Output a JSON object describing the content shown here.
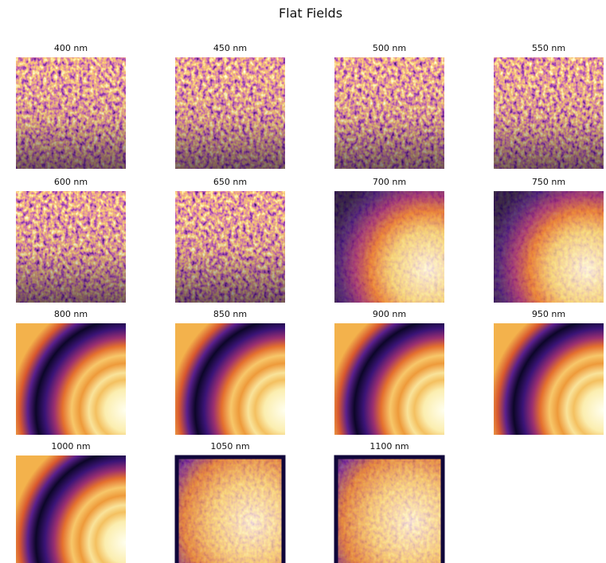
{
  "title": "Flat Fields",
  "panels": [
    {
      "label": "400 nm"
    },
    {
      "label": "450 nm"
    },
    {
      "label": "500 nm"
    },
    {
      "label": "550 nm"
    },
    {
      "label": "600 nm"
    },
    {
      "label": "650 nm"
    },
    {
      "label": "700 nm"
    },
    {
      "label": "750 nm"
    },
    {
      "label": "800 nm"
    },
    {
      "label": "850 nm"
    },
    {
      "label": "900 nm"
    },
    {
      "label": "950 nm"
    },
    {
      "label": "1000 nm"
    },
    {
      "label": "1050 nm"
    },
    {
      "label": "1100 nm"
    }
  ]
}
